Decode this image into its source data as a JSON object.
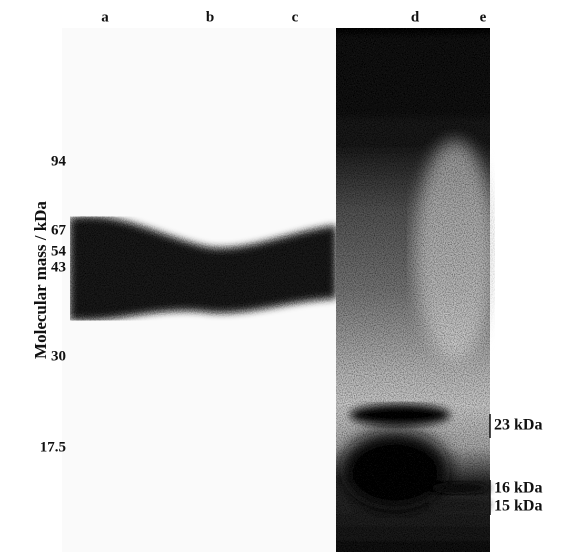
{
  "lanes": [
    "a",
    "b",
    "c",
    "d",
    "e"
  ],
  "y_axis_label": "Molecular mass / kDa",
  "markers": [
    "94",
    "67",
    "54",
    "43",
    "30",
    "17.5"
  ],
  "band_labels": [
    "23 kDa",
    "16 kDa",
    "15 kDa"
  ]
}
